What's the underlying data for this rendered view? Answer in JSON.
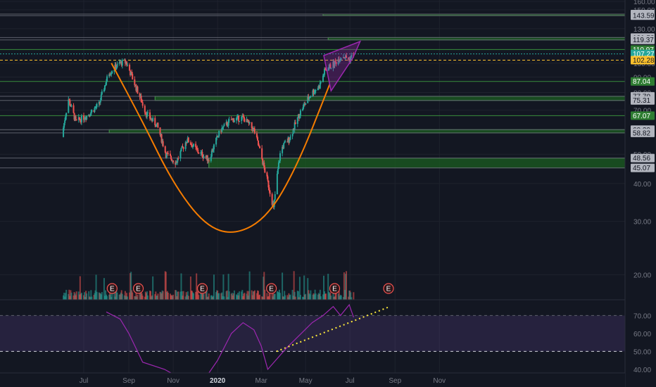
{
  "colors": {
    "background": "#131722",
    "grid": "#1e222d",
    "up": "#26a69a",
    "down": "#ef5350",
    "level_line": "#2e7d32",
    "zone_fill": "#1b5e20",
    "cup_curve": "#f57c00",
    "wedge": "#9c27b0",
    "current_price": "#fbc02d",
    "rsi": "#9c27b0",
    "rsi_band": "#7e57c2",
    "trendline": "#ffeb3b",
    "axis_text": "#b2b5be"
  },
  "chart_data": [
    {
      "type": "candlestick",
      "ylim": [
        16,
        160
      ],
      "y_scale": "log",
      "x_ticks": [
        {
          "label": "Jul",
          "date": "2019-07-01"
        },
        {
          "label": "Sep",
          "date": "2019-09-01"
        },
        {
          "label": "Nov",
          "date": "2019-11-01"
        },
        {
          "label": "2020",
          "date": "2020-01-01"
        },
        {
          "label": "Mar",
          "date": "2020-03-01"
        },
        {
          "label": "May",
          "date": "2020-05-01"
        },
        {
          "label": "Jul",
          "date": "2020-07-01"
        },
        {
          "label": "Sep",
          "date": "2020-09-01"
        },
        {
          "label": "Nov",
          "date": "2020-11-01"
        }
      ],
      "y_ticks": [
        20,
        30,
        40,
        50,
        60,
        70,
        80,
        90,
        100,
        130,
        150,
        160
      ],
      "y_tick_labels": [
        "20.00",
        "30.00",
        "40.00",
        "50.00",
        "60.00",
        "70.00",
        "80.00",
        "90.00",
        "100.00",
        "130.00",
        "150.00",
        "160.00"
      ],
      "price_levels": [
        {
          "value": 145.27,
          "label": "145.27",
          "highlight": false
        },
        {
          "value": 143.59,
          "label": "143.59",
          "highlight": false
        },
        {
          "value": 121.53,
          "label": "121.53",
          "highlight": false
        },
        {
          "value": 119.37,
          "label": "119.37",
          "highlight": false
        },
        {
          "value": 110.97,
          "label": "110.97",
          "highlight": true,
          "color": "#2e7d32"
        },
        {
          "value": 107.27,
          "label": "107.27",
          "highlight": true,
          "color": "#26a69a"
        },
        {
          "value": 102.28,
          "label": "102.28",
          "highlight": true,
          "color": "#fbc02d",
          "current": true
        },
        {
          "value": 87.04,
          "label": "87.04",
          "highlight": true,
          "color": "#2e7d32"
        },
        {
          "value": 77.7,
          "label": "77.70",
          "highlight": false
        },
        {
          "value": 75.31,
          "label": "75.31",
          "highlight": false
        },
        {
          "value": 67.07,
          "label": "67.07",
          "highlight": true,
          "color": "#2e7d32"
        },
        {
          "value": 60.29,
          "label": "60.29",
          "highlight": false
        },
        {
          "value": 58.82,
          "label": "58.82",
          "highlight": false
        },
        {
          "value": 48.56,
          "label": "48.56",
          "highlight": false
        },
        {
          "value": 45.07,
          "label": "45.07",
          "highlight": false
        }
      ],
      "zones": [
        {
          "from": 143.59,
          "to": 145.27,
          "start": "2020-05-25"
        },
        {
          "from": 119.37,
          "to": 121.53,
          "start": "2020-06-01"
        },
        {
          "from": 75.31,
          "to": 77.7,
          "start": "2019-10-07"
        },
        {
          "from": 58.82,
          "to": 60.29,
          "start": "2019-08-05"
        },
        {
          "from": 45.07,
          "to": 48.56,
          "start": "2019-12-20"
        }
      ],
      "price_path": [
        {
          "date": "2019-06-01",
          "close": 57
        },
        {
          "date": "2019-06-10",
          "close": 76
        },
        {
          "date": "2019-06-20",
          "close": 64
        },
        {
          "date": "2019-07-05",
          "close": 67
        },
        {
          "date": "2019-07-22",
          "close": 73
        },
        {
          "date": "2019-08-05",
          "close": 93
        },
        {
          "date": "2019-08-20",
          "close": 100
        },
        {
          "date": "2019-08-28",
          "close": 101
        },
        {
          "date": "2019-09-10",
          "close": 84
        },
        {
          "date": "2019-09-25",
          "close": 68
        },
        {
          "date": "2019-10-10",
          "close": 62
        },
        {
          "date": "2019-10-22",
          "close": 50
        },
        {
          "date": "2019-11-05",
          "close": 47
        },
        {
          "date": "2019-11-20",
          "close": 56
        },
        {
          "date": "2019-12-05",
          "close": 51
        },
        {
          "date": "2019-12-20",
          "close": 48
        },
        {
          "date": "2020-01-05",
          "close": 60
        },
        {
          "date": "2020-01-20",
          "close": 65
        },
        {
          "date": "2020-02-05",
          "close": 66
        },
        {
          "date": "2020-02-20",
          "close": 60
        },
        {
          "date": "2020-03-05",
          "close": 45
        },
        {
          "date": "2020-03-18",
          "close": 33
        },
        {
          "date": "2020-03-28",
          "close": 52
        },
        {
          "date": "2020-04-10",
          "close": 57
        },
        {
          "date": "2020-04-25",
          "close": 70
        },
        {
          "date": "2020-05-10",
          "close": 80
        },
        {
          "date": "2020-05-20",
          "close": 84
        },
        {
          "date": "2020-05-28",
          "close": 95
        },
        {
          "date": "2020-06-10",
          "close": 100
        },
        {
          "date": "2020-06-20",
          "close": 106
        },
        {
          "date": "2020-06-30",
          "close": 103
        },
        {
          "date": "2020-07-06",
          "close": 107
        }
      ],
      "cup_curve": [
        {
          "date": "2019-08-08",
          "value": 100
        },
        {
          "date": "2019-09-20",
          "value": 64
        },
        {
          "date": "2019-11-01",
          "value": 40
        },
        {
          "date": "2019-12-15",
          "value": 29
        },
        {
          "date": "2020-01-25",
          "value": 27
        },
        {
          "date": "2020-03-10",
          "value": 31
        },
        {
          "date": "2020-04-20",
          "value": 46
        },
        {
          "date": "2020-06-03",
          "value": 85
        }
      ],
      "wedge": [
        {
          "date": "2020-05-26",
          "value": 106
        },
        {
          "date": "2020-07-15",
          "value": 118
        },
        {
          "date": "2020-07-05",
          "value": 104
        },
        {
          "date": "2020-06-05",
          "value": 81
        }
      ],
      "earnings_dates": [
        "2019-08-09",
        "2019-09-14",
        "2019-12-11",
        "2020-03-15",
        "2020-06-10",
        "2020-08-23"
      ],
      "earnings_label": "E"
    },
    {
      "type": "line",
      "name_printed": "",
      "ylim": [
        38,
        78
      ],
      "y_ticks": [
        40,
        50,
        60,
        70
      ],
      "y_tick_labels": [
        "40.00",
        "50.00",
        "60.00",
        "70.00"
      ],
      "band": [
        50,
        70
      ],
      "dashed_level": 50,
      "series": [
        {
          "date": "2019-08-01",
          "value": 72
        },
        {
          "date": "2019-08-20",
          "value": 68
        },
        {
          "date": "2019-09-01",
          "value": 60
        },
        {
          "date": "2019-09-20",
          "value": 44
        },
        {
          "date": "2019-10-20",
          "value": 40
        },
        {
          "date": "2019-11-20",
          "value": 33
        },
        {
          "date": "2019-12-15",
          "value": 35
        },
        {
          "date": "2020-01-01",
          "value": 45
        },
        {
          "date": "2020-01-20",
          "value": 60
        },
        {
          "date": "2020-02-05",
          "value": 66
        },
        {
          "date": "2020-02-20",
          "value": 62
        },
        {
          "date": "2020-03-01",
          "value": 53
        },
        {
          "date": "2020-03-10",
          "value": 40
        },
        {
          "date": "2020-04-05",
          "value": 52
        },
        {
          "date": "2020-04-25",
          "value": 60
        },
        {
          "date": "2020-05-10",
          "value": 66
        },
        {
          "date": "2020-05-25",
          "value": 70
        },
        {
          "date": "2020-06-08",
          "value": 75
        },
        {
          "date": "2020-06-18",
          "value": 70
        },
        {
          "date": "2020-06-30",
          "value": 76
        },
        {
          "date": "2020-07-06",
          "value": 69
        }
      ],
      "trendline": [
        {
          "date": "2020-03-22",
          "value": 50
        },
        {
          "date": "2020-08-25",
          "value": 75
        }
      ]
    }
  ]
}
